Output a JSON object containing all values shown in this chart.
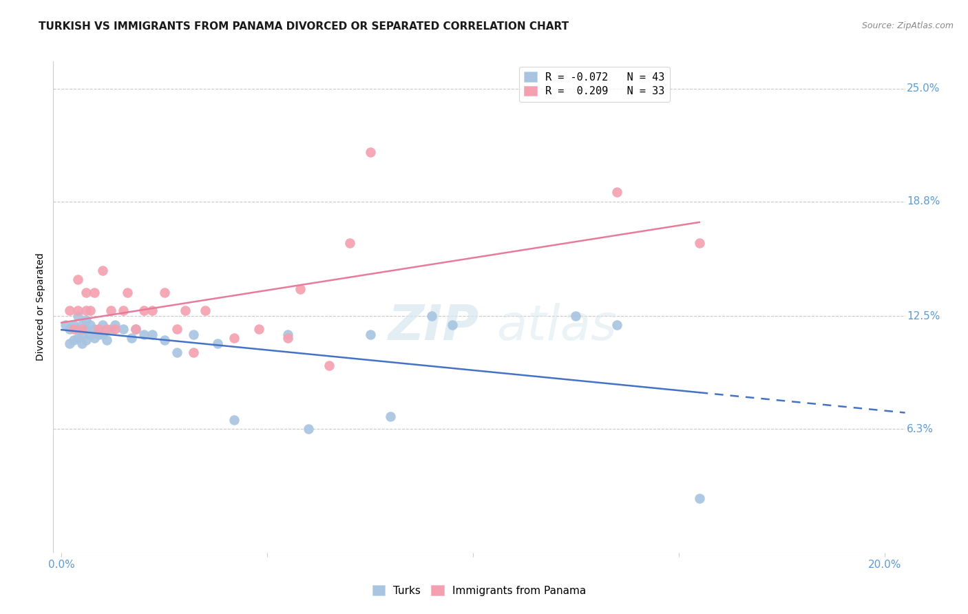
{
  "title": "TURKISH VS IMMIGRANTS FROM PANAMA DIVORCED OR SEPARATED CORRELATION CHART",
  "source": "Source: ZipAtlas.com",
  "ylabel": "Divorced or Separated",
  "xlabel_ticks": [
    "0.0%",
    "",
    "",
    "",
    "20.0%"
  ],
  "xlabel_vals": [
    0.0,
    0.05,
    0.1,
    0.15,
    0.2
  ],
  "ylabel_ticks": [
    "25.0%",
    "18.8%",
    "12.5%",
    "6.3%",
    ""
  ],
  "ylabel_vals": [
    0.25,
    0.188,
    0.125,
    0.063,
    0.0
  ],
  "xlim": [
    -0.002,
    0.205
  ],
  "ylim": [
    -0.005,
    0.265
  ],
  "turks_x": [
    0.001,
    0.002,
    0.002,
    0.003,
    0.003,
    0.004,
    0.004,
    0.004,
    0.005,
    0.005,
    0.005,
    0.006,
    0.006,
    0.006,
    0.007,
    0.007,
    0.008,
    0.008,
    0.009,
    0.01,
    0.01,
    0.011,
    0.012,
    0.013,
    0.015,
    0.017,
    0.018,
    0.02,
    0.022,
    0.025,
    0.028,
    0.032,
    0.038,
    0.042,
    0.055,
    0.06,
    0.075,
    0.08,
    0.09,
    0.095,
    0.125,
    0.135,
    0.155
  ],
  "turks_y": [
    0.12,
    0.11,
    0.118,
    0.112,
    0.12,
    0.113,
    0.118,
    0.125,
    0.11,
    0.115,
    0.12,
    0.112,
    0.118,
    0.123,
    0.115,
    0.12,
    0.113,
    0.118,
    0.115,
    0.115,
    0.12,
    0.112,
    0.118,
    0.12,
    0.118,
    0.113,
    0.118,
    0.115,
    0.115,
    0.112,
    0.105,
    0.115,
    0.11,
    0.068,
    0.115,
    0.063,
    0.115,
    0.07,
    0.125,
    0.12,
    0.125,
    0.12,
    0.025
  ],
  "panama_x": [
    0.002,
    0.003,
    0.004,
    0.004,
    0.005,
    0.006,
    0.006,
    0.007,
    0.008,
    0.009,
    0.01,
    0.011,
    0.012,
    0.013,
    0.015,
    0.016,
    0.018,
    0.02,
    0.022,
    0.025,
    0.028,
    0.03,
    0.032,
    0.035,
    0.042,
    0.048,
    0.055,
    0.058,
    0.065,
    0.07,
    0.075,
    0.135,
    0.155
  ],
  "panama_y": [
    0.128,
    0.118,
    0.128,
    0.145,
    0.118,
    0.128,
    0.138,
    0.128,
    0.138,
    0.118,
    0.15,
    0.118,
    0.128,
    0.118,
    0.128,
    0.138,
    0.118,
    0.128,
    0.128,
    0.138,
    0.118,
    0.128,
    0.105,
    0.128,
    0.113,
    0.118,
    0.113,
    0.14,
    0.098,
    0.165,
    0.215,
    0.193,
    0.165
  ],
  "blue_line_color": "#4472c4",
  "pink_line_color": "#e87a9a",
  "blue_dot_color": "#a8c4e0",
  "pink_dot_color": "#f4a0b0",
  "watermark_zip": "ZIP",
  "watermark_atlas": "atlas",
  "background_color": "#ffffff",
  "grid_color": "#c8c8c8",
  "tick_color": "#5b9bd5",
  "title_fontsize": 11,
  "axis_label_fontsize": 10,
  "tick_fontsize": 11,
  "source_fontsize": 9,
  "legend_r1": "R = -0.072   N = 43",
  "legend_r2": "R =  0.209   N = 33"
}
